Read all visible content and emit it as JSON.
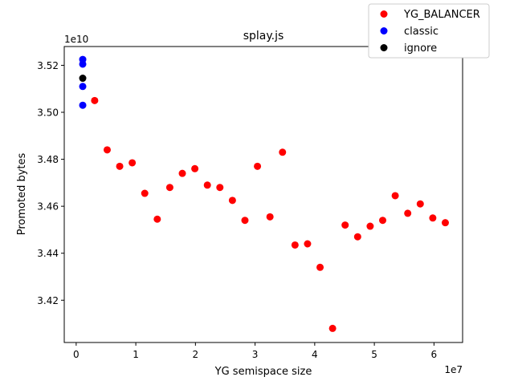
{
  "chart_data": {
    "type": "scatter",
    "title": "splay.js",
    "xlabel": "YG semispace size",
    "ylabel": "Promoted bytes",
    "x_offset_label": "1e7",
    "y_offset_label": "1e10",
    "x_scale": 10000000,
    "y_scale": 10000000000,
    "xlim": [
      -0.2,
      6.48
    ],
    "ylim": [
      3.402,
      3.528
    ],
    "x_ticks": [
      0,
      1,
      2,
      3,
      4,
      5,
      6
    ],
    "y_ticks": [
      3.42,
      3.44,
      3.46,
      3.48,
      3.5,
      3.52
    ],
    "x_tick_labels": [
      "0",
      "1",
      "2",
      "3",
      "4",
      "5",
      "6"
    ],
    "y_tick_labels": [
      "3.42",
      "3.44",
      "3.46",
      "3.48",
      "3.50",
      "3.52"
    ],
    "grid": false,
    "legend_position": "top-right",
    "series": [
      {
        "name": "YG_BALANCER",
        "color": "#ff0000",
        "points": [
          [
            0.31,
            3.505
          ],
          [
            0.52,
            3.484
          ],
          [
            0.73,
            3.477
          ],
          [
            0.94,
            3.4785
          ],
          [
            1.15,
            3.4655
          ],
          [
            1.36,
            3.4545
          ],
          [
            1.57,
            3.468
          ],
          [
            1.78,
            3.474
          ],
          [
            1.99,
            3.476
          ],
          [
            2.2,
            3.469
          ],
          [
            2.41,
            3.468
          ],
          [
            2.62,
            3.4625
          ],
          [
            2.83,
            3.454
          ],
          [
            3.04,
            3.477
          ],
          [
            3.25,
            3.4555
          ],
          [
            3.46,
            3.483
          ],
          [
            3.67,
            3.4435
          ],
          [
            3.88,
            3.444
          ],
          [
            4.09,
            3.434
          ],
          [
            4.3,
            3.408
          ],
          [
            4.51,
            3.452
          ],
          [
            4.72,
            3.447
          ],
          [
            4.93,
            3.4515
          ],
          [
            5.14,
            3.454
          ],
          [
            5.35,
            3.4645
          ],
          [
            5.56,
            3.457
          ],
          [
            5.77,
            3.461
          ],
          [
            5.98,
            3.455
          ],
          [
            6.19,
            3.453
          ]
        ]
      },
      {
        "name": "classic",
        "color": "#0000ff",
        "points": [
          [
            0.11,
            3.5225
          ],
          [
            0.11,
            3.5205
          ],
          [
            0.11,
            3.511
          ],
          [
            0.11,
            3.503
          ]
        ]
      },
      {
        "name": "ignore",
        "color": "#000000",
        "points": [
          [
            0.11,
            3.5145
          ]
        ]
      }
    ]
  }
}
